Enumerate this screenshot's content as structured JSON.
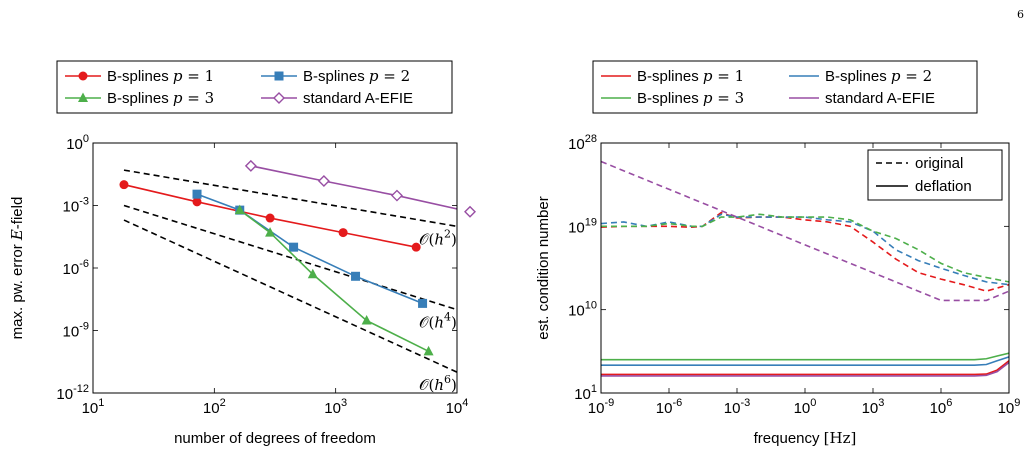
{
  "page_number": "6",
  "colors": {
    "p1": "#e41a1c",
    "p2": "#377eb8",
    "p3": "#4daf4a",
    "aefie": "#984ea3"
  },
  "chart_data": [
    {
      "type": "line",
      "title": "",
      "xlabel": "number of degrees of freedom",
      "ylabel": "max. pw. error E-field",
      "xscale": "log",
      "yscale": "log",
      "xlim": [
        10,
        10000
      ],
      "ylim": [
        1e-12,
        1
      ],
      "x_ticks": [
        "10^1",
        "10^2",
        "10^3",
        "10^4"
      ],
      "y_ticks": [
        "10^-12",
        "10^-9",
        "10^-6",
        "10^-3",
        "10^0"
      ],
      "legend_position": "top (above axes)",
      "series": [
        {
          "name": "B-splines p = 1",
          "color_key": "p1",
          "marker": "circle",
          "x": [
            18,
            72,
            288,
            1152,
            4608
          ],
          "y": [
            0.01,
            0.0015,
            0.00025,
            5e-05,
            1e-05
          ]
        },
        {
          "name": "B-splines p = 2",
          "color_key": "p2",
          "marker": "square",
          "x": [
            72,
            162,
            450,
            1458,
            5202
          ],
          "y": [
            0.0035,
            0.0006,
            1e-05,
            4e-07,
            2e-08
          ]
        },
        {
          "name": "B-splines p = 3",
          "color_key": "p3",
          "marker": "triangle",
          "x": [
            162,
            288,
            648,
            1800,
            5832
          ],
          "y": [
            0.0006,
            5e-05,
            5e-07,
            3e-09,
            1e-10
          ]
        },
        {
          "name": "standard A-EFIE",
          "color_key": "aefie",
          "marker": "diamond",
          "x": [
            200,
            800,
            3200,
            12800
          ],
          "y": [
            0.08,
            0.015,
            0.003,
            0.0005
          ]
        }
      ],
      "reference_lines": [
        {
          "label": "O(h^2)",
          "x": [
            18,
            10000
          ],
          "y": [
            0.05,
            0.0001
          ]
        },
        {
          "label": "O(h^4)",
          "x": [
            18,
            10000
          ],
          "y": [
            0.001,
            1e-08
          ]
        },
        {
          "label": "O(h^6)",
          "x": [
            18,
            10000
          ],
          "y": [
            0.0002,
            1e-11
          ]
        }
      ]
    },
    {
      "type": "line",
      "title": "",
      "xlabel": "frequency [Hz]",
      "ylabel": "est. condition number",
      "xscale": "log",
      "yscale": "log",
      "xlim": [
        1e-09,
        1000000000.0
      ],
      "ylim": [
        10,
        1e+28
      ],
      "x_ticks": [
        "10^-9",
        "10^-6",
        "10^-3",
        "10^0",
        "10^3",
        "10^6",
        "10^9"
      ],
      "y_ticks": [
        "10^1",
        "10^10",
        "10^19",
        "10^28"
      ],
      "legend_position": "top (above axes)",
      "style_legend": {
        "position": "top-right",
        "entries": [
          "original",
          "deflation"
        ]
      },
      "series": [
        {
          "name": "B-splines p = 1",
          "color_key": "p1",
          "style": "original",
          "x": [
            1e-09,
            1e-08,
            1e-07,
            1e-06,
            1e-05,
            3e-05,
            0.0002,
            0.001,
            0.01,
            0.1,
            1,
            10,
            100,
            1000.0,
            10000.0,
            100000.0,
            1000000.0,
            10000000.0,
            100000000.0,
            1000000000.0
          ],
          "y": [
            8e+18,
            1e+19,
            1e+19,
            1e+19,
            8e+18,
            1e+19,
            3e+20,
            8e+19,
            1e+20,
            1e+20,
            5e+19,
            3e+19,
            1e+19,
            2e+17,
            3000000000000000.0,
            100000000000000.0,
            20000000000000.0,
            5000000000000.0,
            1000000000000.0,
            5000000000000.0
          ]
        },
        {
          "name": "B-splines p = 2",
          "color_key": "p2",
          "style": "original",
          "x": [
            1e-09,
            1e-08,
            1e-07,
            1e-06,
            1e-05,
            3e-05,
            0.0002,
            0.001,
            0.01,
            0.1,
            1,
            10,
            100,
            1000.0,
            10000.0,
            100000.0,
            1000000.0,
            10000000.0,
            100000000.0,
            1000000000.0
          ],
          "y": [
            2e+19,
            3e+19,
            1e+19,
            3e+19,
            1e+19,
            1e+19,
            2e+20,
            1e+20,
            1e+20,
            1e+20,
            1e+20,
            5e+19,
            3e+19,
            3e+18,
            3e+16,
            2000000000000000.0,
            300000000000000.0,
            50000000000000.0,
            10000000000000.0,
            5000000000000.0
          ]
        },
        {
          "name": "B-splines p = 3",
          "color_key": "p3",
          "style": "original",
          "x": [
            1e-09,
            1e-08,
            1e-07,
            1e-06,
            1e-05,
            3e-05,
            0.0002,
            0.001,
            0.01,
            0.1,
            1,
            10,
            100,
            1000.0,
            10000.0,
            100000.0,
            1000000.0,
            10000000.0,
            100000000.0,
            1000000000.0
          ],
          "y": [
            1e+19,
            1e+19,
            1e+19,
            2e+19,
            1e+19,
            1e+19,
            1e+20,
            1e+20,
            2e+20,
            1e+20,
            1e+20,
            1e+20,
            5e+19,
            3e+18,
            5e+17,
            3e+16,
            1000000000000000.0,
            100000000000000.0,
            30000000000000.0,
            10000000000000.0
          ]
        },
        {
          "name": "standard A-EFIE",
          "color_key": "aefie",
          "style": "original",
          "x": [
            1e-09,
            1e-06,
            0.001,
            1,
            1000.0,
            1000000.0,
            10000000.0,
            100000000.0,
            1000000000.0
          ],
          "y": [
            1e+26,
            1e+23,
            1e+20,
            1e+17,
            100000000000000.0,
            100000000000.0,
            100000000000.0,
            100000000000.0,
            1000000000000.0
          ]
        },
        {
          "name": "B-splines p = 1",
          "color_key": "p1",
          "style": "deflation",
          "x": [
            1e-09,
            10000000.0,
            30000000.0,
            100000000.0,
            300000000.0,
            1000000000.0
          ],
          "y": [
            1000,
            1000,
            1000,
            1100,
            3000,
            30000
          ]
        },
        {
          "name": "B-splines p = 2",
          "color_key": "p2",
          "style": "deflation",
          "x": [
            1e-09,
            10000000.0,
            30000000.0,
            100000000.0,
            300000000.0,
            1000000000.0
          ],
          "y": [
            10000,
            10000,
            10000,
            12000,
            30000,
            80000
          ]
        },
        {
          "name": "B-splines p = 3",
          "color_key": "p3",
          "style": "deflation",
          "x": [
            1e-09,
            10000000.0,
            30000000.0,
            100000000.0,
            300000000.0,
            1000000000.0
          ],
          "y": [
            40000,
            40000,
            40000,
            50000,
            100000,
            200000
          ]
        },
        {
          "name": "standard A-EFIE",
          "color_key": "aefie",
          "style": "deflation",
          "x": [
            1e-09,
            10000000.0,
            30000000.0,
            100000000.0,
            300000000.0,
            1000000000.0
          ],
          "y": [
            700,
            700,
            700,
            800,
            2000,
            20000
          ]
        }
      ]
    }
  ]
}
